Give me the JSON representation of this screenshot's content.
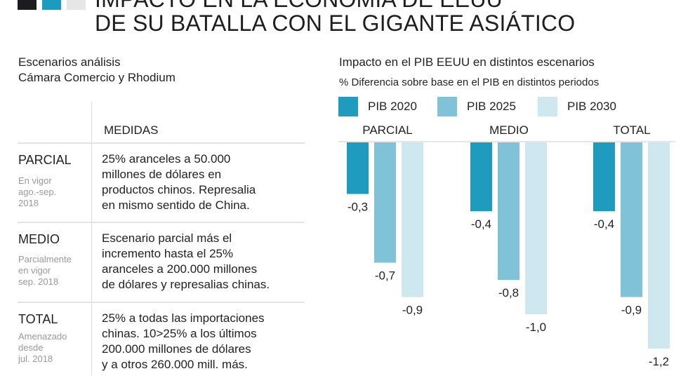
{
  "header": {
    "title_line1": "IMPACTO EN LA ECONOMÍA DE EEUU",
    "title_line2": "DE SU BATALLA CON EL GIGANTE ASIÁTICO",
    "brand_colors": [
      "#1d1b20",
      "#1a9bc0",
      "#e6e6e6"
    ]
  },
  "table": {
    "subtitle_line1": "Escenarios análisis",
    "subtitle_line2": "Cámara Comercio y Rhodium",
    "column_header": "MEDIDAS",
    "rows": [
      {
        "name": "PARCIAL",
        "note": [
          "En vigor",
          "ago.-sep.",
          "2018"
        ],
        "desc": [
          "25% aranceles a 50.000",
          "millones de dólares en",
          "productos chinos. Represalia",
          "en mismo sentido de China."
        ]
      },
      {
        "name": "MEDIO",
        "note": [
          "Parcialmente",
          "en vigor",
          "sep. 2018"
        ],
        "desc": [
          "Escenario parcial más el",
          "incremento hasta el 25%",
          "aranceles a 200.000 millones",
          "de dólares y represalias chinas."
        ]
      },
      {
        "name": "TOTAL",
        "note": [
          "Amenazado",
          "desde",
          "jul. 2018"
        ],
        "desc": [
          "25% a todas las importaciones",
          "chinas. 10>25% a los últimos",
          "200.000 millones de dólares",
          "y a otros 260.000 mill. más."
        ]
      }
    ]
  },
  "chart_data": {
    "type": "bar",
    "title": "Impacto en el PIB EEUU en distintos escenarios",
    "subtitle": "% Diferencia sobre base en el PIB en distintos periodos",
    "categories": [
      "PARCIAL",
      "MEDIO",
      "TOTAL"
    ],
    "series": [
      {
        "name": "PIB 2020",
        "color": "#1e9bbd",
        "values": [
          -0.3,
          -0.4,
          -0.4
        ]
      },
      {
        "name": "PIB 2025",
        "color": "#80c3d8",
        "values": [
          -0.7,
          -0.8,
          -0.9
        ]
      },
      {
        "name": "PIB 2030",
        "color": "#cfe8ef",
        "values": [
          -0.9,
          -1.0,
          -1.2
        ]
      }
    ],
    "data_labels": [
      [
        "-0,3",
        "-0,4",
        "-0,4"
      ],
      [
        "-0,7",
        "-0,8",
        "-0,9"
      ],
      [
        "-0,9",
        "-1,0",
        "-1,2"
      ]
    ],
    "legend": "top-left",
    "grid": false
  }
}
